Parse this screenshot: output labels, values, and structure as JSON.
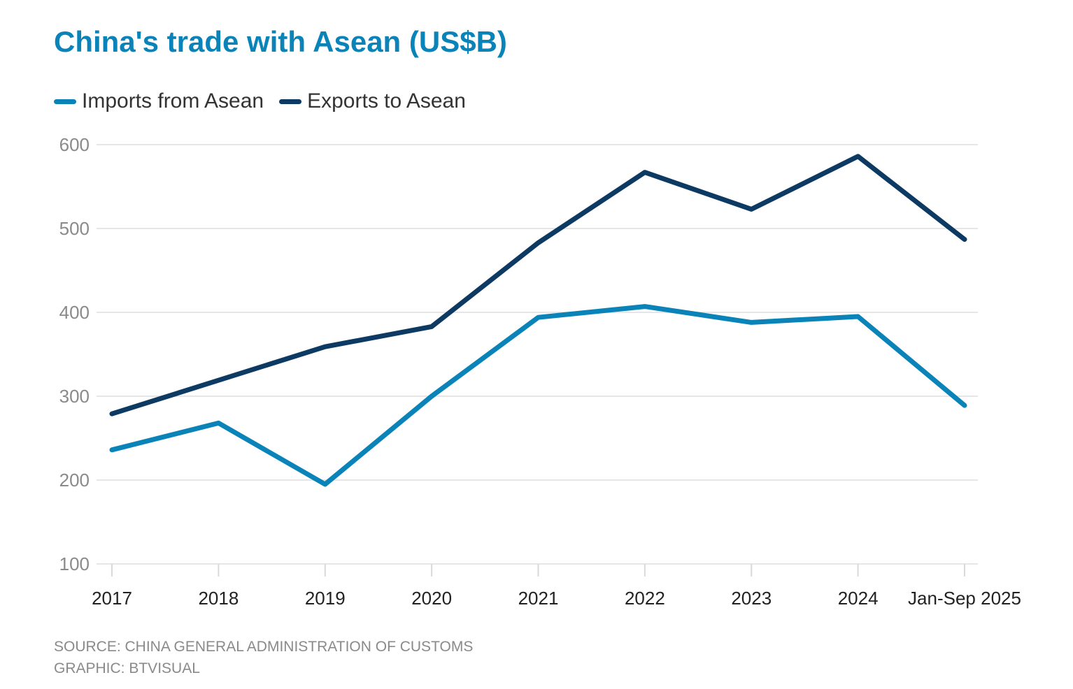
{
  "chart_data": {
    "type": "line",
    "title": "China's trade with Asean (US$B)",
    "categories": [
      "2017",
      "2018",
      "2019",
      "2020",
      "2021",
      "2022",
      "2023",
      "2024",
      "Jan-Sep 2025"
    ],
    "series": [
      {
        "name": "Imports from Asean",
        "color": "#0a84b8",
        "values": [
          236,
          268,
          195,
          300,
          394,
          407,
          388,
          395,
          289
        ]
      },
      {
        "name": "Exports to Asean",
        "color": "#0c3a63",
        "values": [
          279,
          319,
          359,
          383,
          483,
          567,
          523,
          586,
          487
        ]
      }
    ],
    "yticks": [
      100,
      200,
      300,
      400,
      500,
      600
    ],
    "ylim": [
      100,
      600
    ],
    "xlabel": "",
    "ylabel": "",
    "grid": true,
    "legend_position": "top-left"
  },
  "footer": {
    "source": "SOURCE: CHINA GENERAL ADMINISTRATION OF CUSTOMS",
    "graphic": "GRAPHIC: BTVISUAL"
  }
}
